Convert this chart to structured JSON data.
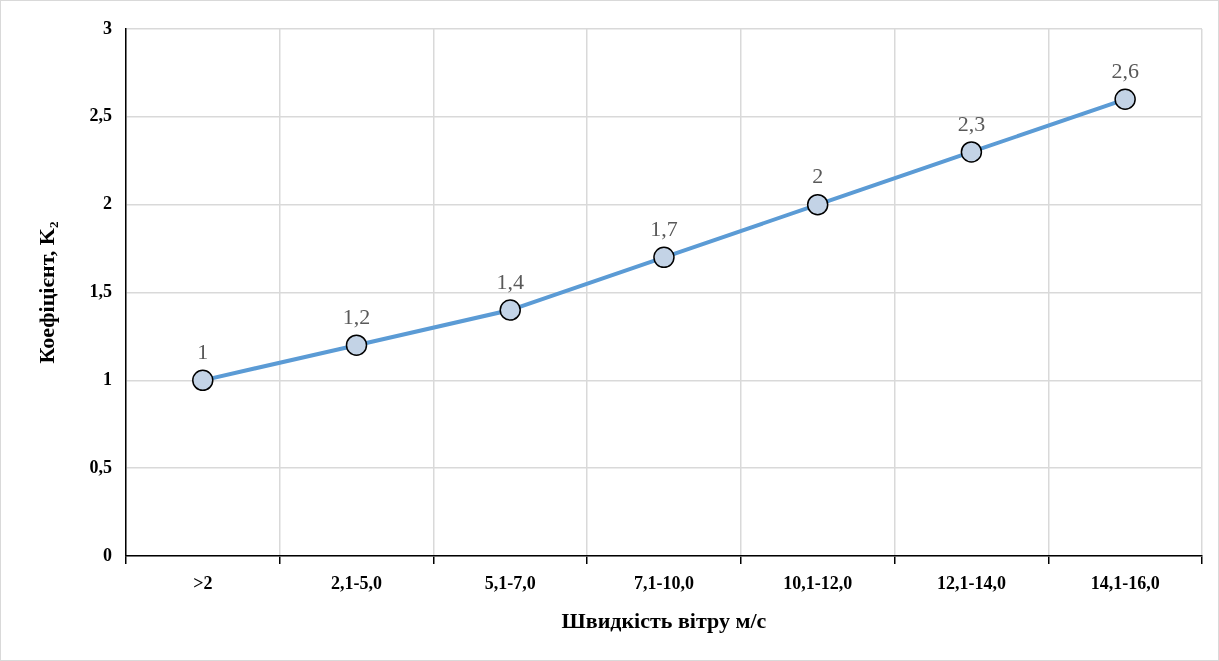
{
  "chart_data": {
    "type": "line",
    "xlabel": "Швидкість вітру м/с",
    "ylabel": "Коефіцієнт, K₂",
    "categories": [
      ">2",
      "2,1-5,0",
      "5,1-7,0",
      "7,1-10,0",
      "10,1-12,0",
      "12,1-14,0",
      "14,1-16,0"
    ],
    "series": [
      {
        "color": "#5b9bd5",
        "values": [
          1,
          1.2,
          1.4,
          1.7,
          2,
          2.3,
          2.6
        ],
        "value_labels": [
          "1",
          "1,2",
          "1,4",
          "1,7",
          "2",
          "2,3",
          "2,6"
        ]
      }
    ],
    "ylim": [
      0,
      3
    ],
    "yticks": [
      0,
      {
        "value": 0.5,
        "label": "0,5"
      },
      1,
      {
        "value": 1.5,
        "label": "1,5"
      },
      2,
      {
        "value": 2.5,
        "label": "2,5"
      },
      3
    ],
    "grid": true,
    "legend": false,
    "marker": "circle",
    "line_style": "solid"
  }
}
